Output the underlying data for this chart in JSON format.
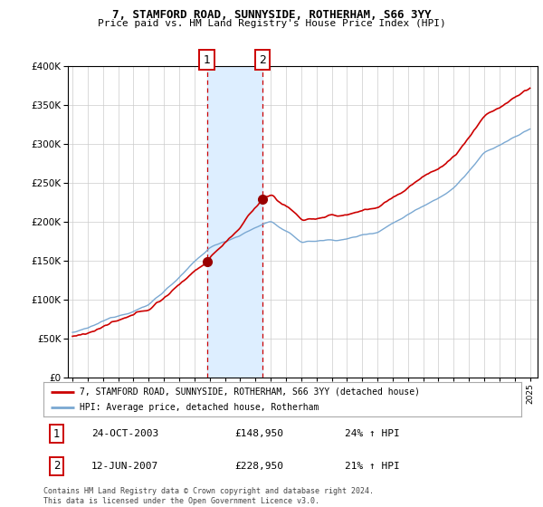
{
  "title": "7, STAMFORD ROAD, SUNNYSIDE, ROTHERHAM, S66 3YY",
  "subtitle": "Price paid vs. HM Land Registry's House Price Index (HPI)",
  "legend_line1": "7, STAMFORD ROAD, SUNNYSIDE, ROTHERHAM, S66 3YY (detached house)",
  "legend_line2": "HPI: Average price, detached house, Rotherham",
  "transaction1_label": "1",
  "transaction1_date": "24-OCT-2003",
  "transaction1_price": "£148,950",
  "transaction1_hpi": "24% ↑ HPI",
  "transaction1_year": 2003.82,
  "transaction1_value": 148950,
  "transaction2_label": "2",
  "transaction2_date": "12-JUN-2007",
  "transaction2_price": "£228,950",
  "transaction2_hpi": "21% ↑ HPI",
  "transaction2_year": 2007.45,
  "transaction2_value": 228950,
  "footer": "Contains HM Land Registry data © Crown copyright and database right 2024.\nThis data is licensed under the Open Government Licence v3.0.",
  "ylim": [
    0,
    400000
  ],
  "ytop_extra": 420000,
  "xlim_start": 1994.7,
  "xlim_end": 2025.5,
  "hpi_color": "#7aa8d2",
  "price_color": "#cc0000",
  "shade_color": "#ddeeff",
  "marker_color": "#990000",
  "grid_color": "#cccccc",
  "background_color": "#ffffff",
  "title_fontsize": 9,
  "subtitle_fontsize": 8
}
